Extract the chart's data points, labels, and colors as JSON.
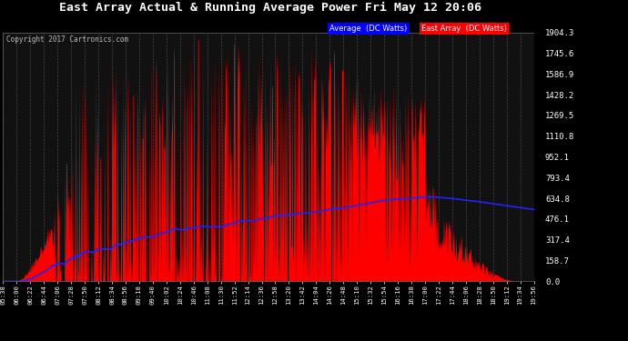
{
  "title": "East Array Actual & Running Average Power Fri May 12 20:06",
  "copyright": "Copyright 2017 Cartronics.com",
  "legend_avg": "Average  (DC Watts)",
  "legend_east": "East Array  (DC Watts)",
  "yticks": [
    0.0,
    158.7,
    317.4,
    476.1,
    634.8,
    793.4,
    952.1,
    1110.8,
    1269.5,
    1428.2,
    1586.9,
    1745.6,
    1904.3
  ],
  "xtick_labels": [
    "05:38",
    "06:00",
    "06:22",
    "06:44",
    "07:06",
    "07:28",
    "07:50",
    "08:12",
    "08:34",
    "08:56",
    "09:18",
    "09:40",
    "10:02",
    "10:24",
    "10:46",
    "11:08",
    "11:30",
    "11:52",
    "12:14",
    "12:36",
    "12:58",
    "13:20",
    "13:42",
    "14:04",
    "14:26",
    "14:48",
    "15:10",
    "15:32",
    "15:54",
    "16:16",
    "16:38",
    "17:00",
    "17:22",
    "17:44",
    "18:06",
    "18:28",
    "18:50",
    "19:12",
    "19:34",
    "19:56"
  ],
  "bg_color": "#000000",
  "plot_bg_color": "#111111",
  "grid_color": "#444444",
  "title_color": "#ffffff",
  "axis_color": "#ffffff",
  "tick_color": "#ffffff",
  "red_color": "#ff0000",
  "blue_color": "#2222ff",
  "ymax": 1904.3,
  "ymin": 0.0,
  "fig_width": 6.9,
  "fig_height": 3.75,
  "dpi": 100
}
